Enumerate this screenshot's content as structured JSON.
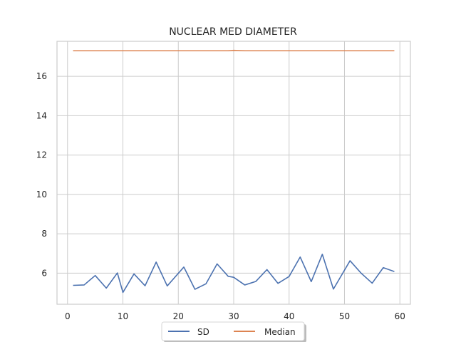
{
  "chart_data": {
    "type": "line",
    "title": "NUCLEAR MED DIAMETER",
    "xlabel": "",
    "ylabel": "",
    "xlim": [
      -1.9,
      61.9
    ],
    "ylim": [
      4.42,
      17.78
    ],
    "xticks": [
      0,
      10,
      20,
      30,
      40,
      50,
      60
    ],
    "yticks": [
      6,
      8,
      10,
      12,
      14,
      16
    ],
    "grid": true,
    "legend": {
      "position": "bottom-center",
      "columns": 2
    },
    "series": [
      {
        "name": "SD",
        "color": "#4c72b0",
        "x": [
          1,
          3,
          5,
          7,
          9,
          10,
          12,
          14,
          16,
          18,
          21,
          23,
          25,
          27,
          29,
          30,
          32,
          34,
          36,
          38,
          40,
          42,
          44,
          46,
          48,
          51,
          53,
          55,
          57,
          59
        ],
        "y": [
          5.38,
          5.4,
          5.88,
          5.24,
          6.01,
          5.02,
          5.96,
          5.36,
          6.56,
          5.35,
          6.31,
          5.18,
          5.46,
          6.47,
          5.84,
          5.79,
          5.4,
          5.58,
          6.18,
          5.48,
          5.83,
          6.82,
          5.57,
          6.96,
          5.19,
          6.63,
          6.0,
          5.49,
          6.28,
          6.08
        ]
      },
      {
        "name": "Median",
        "color": "#dd8452",
        "x": [
          1,
          5,
          10,
          15,
          20,
          25,
          29,
          30,
          32,
          35,
          40,
          45,
          50,
          55,
          59
        ],
        "y": [
          17.3,
          17.3,
          17.3,
          17.3,
          17.3,
          17.3,
          17.3,
          17.32,
          17.3,
          17.3,
          17.3,
          17.3,
          17.3,
          17.3,
          17.3
        ]
      }
    ]
  }
}
